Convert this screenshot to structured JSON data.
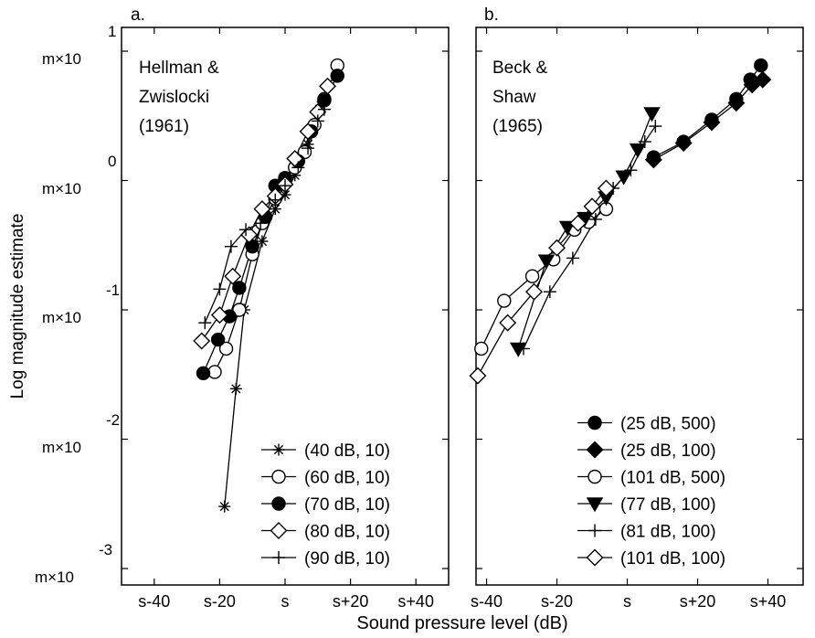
{
  "figure": {
    "ylabel": "Log magnitude estimate",
    "xlabel": "Sound pressure level (dB)",
    "ytick_labels": [
      {
        "base": "m×10",
        "exp": "1"
      },
      {
        "base": "m×10",
        "exp": "0"
      },
      {
        "base": "m×10",
        "exp": "-1"
      },
      {
        "base": "m×10",
        "exp": "-2"
      },
      {
        "base": "m×10",
        "exp": "-3"
      }
    ]
  },
  "chart_data": [
    {
      "type": "line",
      "panel_label": "a.",
      "title_lines": [
        "Hellman &",
        "Zwislocki",
        "(1961)"
      ],
      "xlabel": "Sound pressure level (dB)",
      "ylabel": "Log magnitude estimate",
      "xlim": [
        -50,
        50
      ],
      "ylim": [
        -3.5,
        1
      ],
      "xticks": [
        -40,
        -20,
        0,
        20,
        40
      ],
      "xtick_labels": [
        "s-40",
        "s-20",
        "s",
        "s+20",
        "s+40"
      ],
      "yticks": [
        1,
        0,
        -1,
        -2,
        -3
      ],
      "yscale": "log10 (exponent of m×10)",
      "grid": false,
      "legend_position": "bottom-right",
      "series": [
        {
          "name": "(40 dB, 10)",
          "marker": "asterisk",
          "points": [
            [
              -18.5,
              -2.52
            ],
            [
              -15,
              -1.61
            ],
            [
              -12.5,
              -1.0
            ],
            [
              -7,
              -0.47
            ],
            [
              -3,
              -0.22
            ],
            [
              0,
              -0.11
            ],
            [
              3,
              0.04
            ],
            [
              7,
              0.28
            ],
            [
              11,
              0.58
            ]
          ]
        },
        {
          "name": "(60 dB, 10)",
          "marker": "open-circle",
          "points": [
            [
              -21.5,
              -1.48
            ],
            [
              -18,
              -1.3
            ],
            [
              -14,
              -1.0
            ],
            [
              -10,
              -0.57
            ],
            [
              -7,
              -0.33
            ],
            [
              -3,
              -0.14
            ],
            [
              0,
              0.0
            ],
            [
              3,
              0.1
            ],
            [
              6,
              0.22
            ],
            [
              9,
              0.43
            ],
            [
              12,
              0.63
            ],
            [
              16,
              0.89
            ]
          ]
        },
        {
          "name": "(70 dB, 10)",
          "marker": "filled-circle",
          "points": [
            [
              -25,
              -1.49
            ],
            [
              -20.5,
              -1.23
            ],
            [
              -17,
              -1.05
            ],
            [
              -14,
              -0.83
            ],
            [
              -10,
              -0.51
            ],
            [
              -6,
              -0.28
            ],
            [
              -3,
              -0.04
            ],
            [
              0,
              0.02
            ],
            [
              4,
              0.15
            ],
            [
              8,
              0.38
            ],
            [
              12,
              0.62
            ],
            [
              16,
              0.81
            ]
          ]
        },
        {
          "name": "(80 dB, 10)",
          "marker": "open-diamond",
          "points": [
            [
              -25.5,
              -1.24
            ],
            [
              -20,
              -1.04
            ],
            [
              -16,
              -0.74
            ],
            [
              -11,
              -0.42
            ],
            [
              -7,
              -0.22
            ],
            [
              -3,
              -0.12
            ],
            [
              0,
              -0.03
            ],
            [
              3,
              0.17
            ],
            [
              7,
              0.38
            ],
            [
              10,
              0.53
            ],
            [
              13,
              0.73
            ]
          ]
        },
        {
          "name": "(90 dB, 10)",
          "marker": "plus",
          "points": [
            [
              -24.5,
              -1.1
            ],
            [
              -20,
              -0.84
            ],
            [
              -16.5,
              -0.51
            ],
            [
              -12,
              -0.38
            ],
            [
              -7.5,
              -0.33
            ],
            [
              -3,
              -0.15
            ],
            [
              0,
              -0.04
            ],
            [
              4,
              0.1
            ],
            [
              7,
              0.25
            ],
            [
              10,
              0.46
            ],
            [
              12,
              0.55
            ]
          ]
        }
      ]
    },
    {
      "type": "line",
      "panel_label": "b.",
      "title_lines": [
        "Beck &",
        "Shaw",
        "(1965)"
      ],
      "xlabel": "Sound pressure level (dB)",
      "ylabel": "",
      "xlim": [
        -43,
        50
      ],
      "ylim": [
        -3.5,
        1
      ],
      "xticks": [
        -40,
        -20,
        0,
        20,
        40
      ],
      "xtick_labels": [
        "s-40",
        "s-20",
        "s",
        "s+20",
        "s+40"
      ],
      "yticks": [
        1,
        0,
        -1,
        -2,
        -3
      ],
      "yscale": "log10 (exponent of m×10)",
      "grid": false,
      "legend_position": "bottom-right",
      "series": [
        {
          "name": "(25 dB, 500)",
          "marker": "filled-circle",
          "points": [
            [
              7.5,
              0.18
            ],
            [
              16,
              0.3
            ],
            [
              24,
              0.47
            ],
            [
              31,
              0.63
            ],
            [
              35,
              0.78
            ],
            [
              38,
              0.89
            ]
          ]
        },
        {
          "name": "(25 dB, 100)",
          "marker": "filled-diamond",
          "points": [
            [
              7.5,
              0.16
            ],
            [
              16,
              0.29
            ],
            [
              24,
              0.45
            ],
            [
              31,
              0.6
            ],
            [
              35.5,
              0.74
            ],
            [
              38.5,
              0.78
            ]
          ]
        },
        {
          "name": "(101 dB, 500)",
          "marker": "open-circle",
          "points": [
            [
              -41.5,
              -1.3
            ],
            [
              -35,
              -0.93
            ],
            [
              -27,
              -0.74
            ],
            [
              -21,
              -0.61
            ],
            [
              -15,
              -0.38
            ],
            [
              -11,
              -0.32
            ],
            [
              -6,
              -0.22
            ]
          ]
        },
        {
          "name": "(77 dB, 100)",
          "marker": "filled-triangle-down",
          "points": [
            [
              -31,
              -1.3
            ],
            [
              -23,
              -0.62
            ],
            [
              -17,
              -0.36
            ],
            [
              -12,
              -0.29
            ],
            [
              -6,
              -0.13
            ],
            [
              -1,
              0.03
            ],
            [
              3,
              0.24
            ],
            [
              7,
              0.52
            ]
          ]
        },
        {
          "name": "(81 dB, 100)",
          "marker": "plus",
          "points": [
            [
              -29.5,
              -1.3
            ],
            [
              -22,
              -0.86
            ],
            [
              -15.5,
              -0.6
            ],
            [
              -9,
              -0.3
            ],
            [
              -4,
              -0.06
            ],
            [
              1,
              0.08
            ],
            [
              5,
              0.3
            ],
            [
              8,
              0.42
            ]
          ]
        },
        {
          "name": "(101 dB, 100)",
          "marker": "open-diamond",
          "points": [
            [
              -42.5,
              -1.51
            ],
            [
              -34,
              -1.1
            ],
            [
              -26.5,
              -0.86
            ],
            [
              -20,
              -0.52
            ],
            [
              -14,
              -0.33
            ],
            [
              -10,
              -0.2
            ],
            [
              -6,
              -0.06
            ]
          ]
        }
      ]
    }
  ]
}
